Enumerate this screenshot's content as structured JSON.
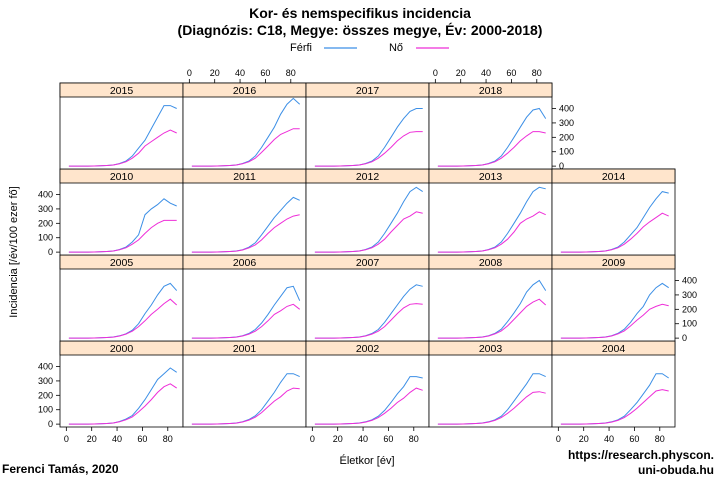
{
  "header": {
    "title_line1": "Kor- és nemspecifikus incidencia",
    "title_line2": "(Diagnózis: C18, Megye: összes megye, Év: 2000-2018)"
  },
  "legend": {
    "items": [
      {
        "label": "Férfi",
        "color": "#3c8fe6"
      },
      {
        "label": "Nő",
        "color": "#ee2ed8"
      }
    ]
  },
  "footer": {
    "author": "Ferenci Tamás, 2020",
    "url_line1": "https://research.physcon.",
    "url_line2": "uni-obuda.hu"
  },
  "chart_data": {
    "type": "line",
    "layout": "trellis 5 columns x 4 rows, one panel per year",
    "xlabel": "Életkor [év]",
    "ylabel": "Incidencia [/év/100 ezer fő]",
    "xlim": [
      -5,
      92
    ],
    "ylim": [
      -20,
      480
    ],
    "x_ticks": [
      "0",
      "20",
      "40",
      "60",
      "80"
    ],
    "y_ticks": [
      "0",
      "100",
      "200",
      "300",
      "400"
    ],
    "x": [
      2,
      7,
      12,
      17,
      22,
      27,
      32,
      37,
      42,
      47,
      52,
      57,
      62,
      67,
      72,
      77,
      82,
      87
    ],
    "series_colors": {
      "ferfi": "#3c8fe6",
      "no": "#ee2ed8"
    },
    "panels": [
      {
        "year": "2000",
        "ferfi": [
          0,
          0,
          0,
          0,
          1,
          2,
          4,
          8,
          18,
          35,
          60,
          110,
          170,
          240,
          310,
          350,
          390,
          360
        ],
        "no": [
          0,
          0,
          0,
          0,
          1,
          2,
          4,
          8,
          16,
          30,
          50,
          85,
          125,
          170,
          220,
          260,
          280,
          250
        ]
      },
      {
        "year": "2001",
        "ferfi": [
          0,
          0,
          0,
          0,
          1,
          2,
          4,
          8,
          17,
          32,
          58,
          100,
          160,
          220,
          290,
          350,
          350,
          330
        ],
        "no": [
          0,
          0,
          0,
          0,
          1,
          2,
          4,
          7,
          15,
          28,
          48,
          80,
          120,
          160,
          190,
          230,
          250,
          245
        ]
      },
      {
        "year": "2002",
        "ferfi": [
          0,
          0,
          0,
          0,
          1,
          2,
          4,
          8,
          16,
          30,
          55,
          95,
          150,
          210,
          260,
          330,
          330,
          320
        ],
        "no": [
          0,
          0,
          0,
          0,
          1,
          2,
          4,
          7,
          14,
          26,
          45,
          75,
          110,
          150,
          180,
          220,
          250,
          235
        ]
      },
      {
        "year": "2003",
        "ferfi": [
          0,
          0,
          0,
          0,
          1,
          2,
          4,
          8,
          16,
          30,
          55,
          100,
          160,
          220,
          280,
          350,
          350,
          330
        ],
        "no": [
          0,
          0,
          0,
          0,
          1,
          2,
          4,
          7,
          14,
          26,
          45,
          75,
          110,
          150,
          190,
          220,
          225,
          215
        ]
      },
      {
        "year": "2004",
        "ferfi": [
          0,
          0,
          0,
          0,
          1,
          2,
          4,
          8,
          16,
          30,
          55,
          100,
          150,
          210,
          270,
          350,
          350,
          320
        ],
        "no": [
          0,
          0,
          0,
          0,
          1,
          2,
          4,
          7,
          14,
          26,
          45,
          75,
          110,
          150,
          190,
          230,
          240,
          230
        ]
      },
      {
        "year": "2005",
        "ferfi": [
          0,
          0,
          0,
          0,
          1,
          2,
          4,
          8,
          16,
          30,
          55,
          100,
          170,
          230,
          300,
          360,
          380,
          330
        ],
        "no": [
          0,
          0,
          0,
          0,
          1,
          2,
          4,
          7,
          15,
          28,
          48,
          80,
          120,
          165,
          200,
          240,
          270,
          230
        ]
      },
      {
        "year": "2006",
        "ferfi": [
          0,
          0,
          0,
          0,
          1,
          2,
          4,
          8,
          17,
          32,
          60,
          105,
          165,
          230,
          290,
          350,
          360,
          260
        ],
        "no": [
          0,
          0,
          0,
          0,
          1,
          2,
          4,
          7,
          15,
          28,
          48,
          80,
          120,
          165,
          190,
          220,
          235,
          200
        ]
      },
      {
        "year": "2007",
        "ferfi": [
          0,
          0,
          0,
          0,
          1,
          2,
          4,
          8,
          17,
          32,
          60,
          110,
          170,
          230,
          290,
          340,
          370,
          360
        ],
        "no": [
          0,
          0,
          0,
          0,
          1,
          2,
          4,
          7,
          15,
          28,
          48,
          80,
          125,
          170,
          210,
          235,
          240,
          235
        ]
      },
      {
        "year": "2008",
        "ferfi": [
          0,
          0,
          0,
          0,
          1,
          2,
          4,
          8,
          17,
          33,
          62,
          115,
          175,
          240,
          320,
          370,
          400,
          330
        ],
        "no": [
          0,
          0,
          0,
          0,
          1,
          2,
          4,
          7,
          15,
          29,
          50,
          85,
          130,
          175,
          220,
          250,
          270,
          230
        ]
      },
      {
        "year": "2009",
        "ferfi": [
          0,
          0,
          0,
          0,
          1,
          2,
          4,
          8,
          17,
          33,
          62,
          110,
          170,
          220,
          300,
          350,
          380,
          350
        ],
        "no": [
          0,
          0,
          0,
          0,
          1,
          2,
          4,
          7,
          15,
          29,
          50,
          85,
          125,
          160,
          200,
          220,
          235,
          225
        ]
      },
      {
        "year": "2010",
        "ferfi": [
          0,
          0,
          0,
          0,
          1,
          2,
          4,
          8,
          18,
          35,
          70,
          120,
          260,
          300,
          330,
          370,
          340,
          320
        ],
        "no": [
          0,
          0,
          0,
          0,
          1,
          2,
          4,
          8,
          16,
          30,
          55,
          85,
          130,
          170,
          200,
          220,
          220,
          220
        ]
      },
      {
        "year": "2011",
        "ferfi": [
          0,
          0,
          0,
          0,
          1,
          2,
          4,
          8,
          17,
          34,
          65,
          120,
          180,
          240,
          290,
          340,
          380,
          360
        ],
        "no": [
          0,
          0,
          0,
          0,
          1,
          2,
          4,
          7,
          15,
          29,
          50,
          85,
          130,
          170,
          200,
          230,
          250,
          260
        ]
      },
      {
        "year": "2012",
        "ferfi": [
          0,
          0,
          0,
          0,
          1,
          2,
          4,
          8,
          18,
          35,
          70,
          130,
          200,
          270,
          350,
          420,
          450,
          420
        ],
        "no": [
          0,
          0,
          0,
          0,
          1,
          2,
          4,
          8,
          16,
          30,
          55,
          90,
          140,
          185,
          230,
          250,
          280,
          270
        ]
      },
      {
        "year": "2013",
        "ferfi": [
          0,
          0,
          0,
          0,
          1,
          2,
          4,
          8,
          18,
          35,
          70,
          130,
          200,
          270,
          350,
          420,
          450,
          440
        ],
        "no": [
          0,
          0,
          0,
          0,
          1,
          2,
          4,
          8,
          16,
          30,
          55,
          90,
          140,
          200,
          230,
          250,
          280,
          260
        ]
      },
      {
        "year": "2014",
        "ferfi": [
          0,
          0,
          0,
          0,
          1,
          2,
          4,
          8,
          18,
          35,
          70,
          120,
          170,
          240,
          310,
          370,
          420,
          410
        ],
        "no": [
          0,
          0,
          0,
          0,
          1,
          2,
          4,
          8,
          16,
          30,
          55,
          90,
          130,
          175,
          210,
          240,
          270,
          250
        ]
      },
      {
        "year": "2015",
        "ferfi": [
          0,
          0,
          0,
          0,
          1,
          2,
          4,
          8,
          18,
          35,
          70,
          125,
          180,
          260,
          340,
          420,
          420,
          400
        ],
        "no": [
          0,
          0,
          0,
          0,
          1,
          2,
          4,
          8,
          16,
          30,
          55,
          90,
          140,
          170,
          200,
          230,
          250,
          230
        ]
      },
      {
        "year": "2016",
        "ferfi": [
          0,
          0,
          0,
          0,
          1,
          2,
          4,
          8,
          18,
          35,
          70,
          130,
          200,
          270,
          360,
          430,
          470,
          430
        ],
        "no": [
          0,
          0,
          0,
          0,
          1,
          2,
          4,
          8,
          16,
          30,
          55,
          95,
          140,
          185,
          220,
          240,
          260,
          260
        ]
      },
      {
        "year": "2017",
        "ferfi": [
          0,
          0,
          0,
          0,
          1,
          2,
          4,
          8,
          18,
          35,
          70,
          130,
          200,
          270,
          330,
          380,
          400,
          400
        ],
        "no": [
          0,
          0,
          0,
          0,
          1,
          2,
          4,
          8,
          16,
          30,
          55,
          90,
          130,
          175,
          210,
          235,
          240,
          240
        ]
      },
      {
        "year": "2018",
        "ferfi": [
          0,
          0,
          0,
          0,
          1,
          2,
          4,
          8,
          18,
          35,
          70,
          130,
          200,
          270,
          340,
          390,
          400,
          330
        ],
        "no": [
          0,
          0,
          0,
          0,
          1,
          2,
          4,
          8,
          16,
          30,
          55,
          90,
          130,
          175,
          210,
          240,
          240,
          230
        ]
      }
    ]
  }
}
